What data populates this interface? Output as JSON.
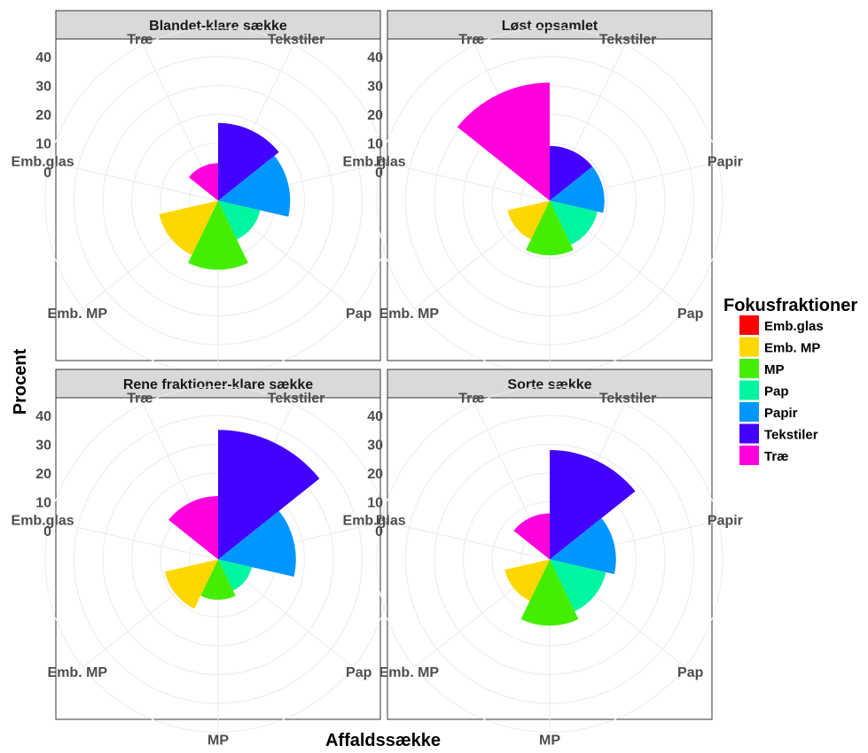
{
  "chart_data": {
    "type": "polar-bar",
    "xlabel": "Affaldssække",
    "ylabel": "Procent",
    "yticks": [
      0,
      10,
      20,
      30,
      40
    ],
    "ylim": [
      -10,
      50
    ],
    "grid": true,
    "categories": [
      "Tekstiler",
      "Papir",
      "Pap",
      "MP",
      "Emb. MP",
      "Emb.glas",
      "Træ"
    ],
    "legend": {
      "title": "Fokusfraktioner",
      "position": "right",
      "items": [
        {
          "label": "Emb.glas",
          "color": "#ff0000"
        },
        {
          "label": "Emb. MP",
          "color": "#ffd700"
        },
        {
          "label": "MP",
          "color": "#44ee00"
        },
        {
          "label": "Pap",
          "color": "#00f5a0"
        },
        {
          "label": "Papir",
          "color": "#0096ff"
        },
        {
          "label": "Tekstiler",
          "color": "#4400ff"
        },
        {
          "label": "Træ",
          "color": "#ff00dd"
        }
      ]
    },
    "facets": [
      {
        "title": "Blandet-klare sække",
        "values": {
          "Tekstiler": 17,
          "Papir": 15,
          "Pap": 5,
          "MP": 14,
          "Emb. MP": 11,
          "Emb.glas": 0,
          "Træ": 3
        }
      },
      {
        "title": "Løst opsamlet",
        "values": {
          "Tekstiler": 9,
          "Papir": 9,
          "Pap": 7,
          "MP": 9,
          "Emb. MP": 5,
          "Emb.glas": 0,
          "Træ": 31
        }
      },
      {
        "title": "Rene fraktioner-klare sække",
        "values": {
          "Tekstiler": 35,
          "Papir": 17,
          "Pap": 2,
          "MP": 4,
          "Emb. MP": 9,
          "Emb.glas": 0,
          "Træ": 12
        }
      },
      {
        "title": "Sorte sække",
        "values": {
          "Tekstiler": 28,
          "Papir": 13,
          "Pap": 10,
          "MP": 13,
          "Emb. MP": 6,
          "Emb.glas": 0,
          "Træ": 6
        }
      }
    ]
  }
}
